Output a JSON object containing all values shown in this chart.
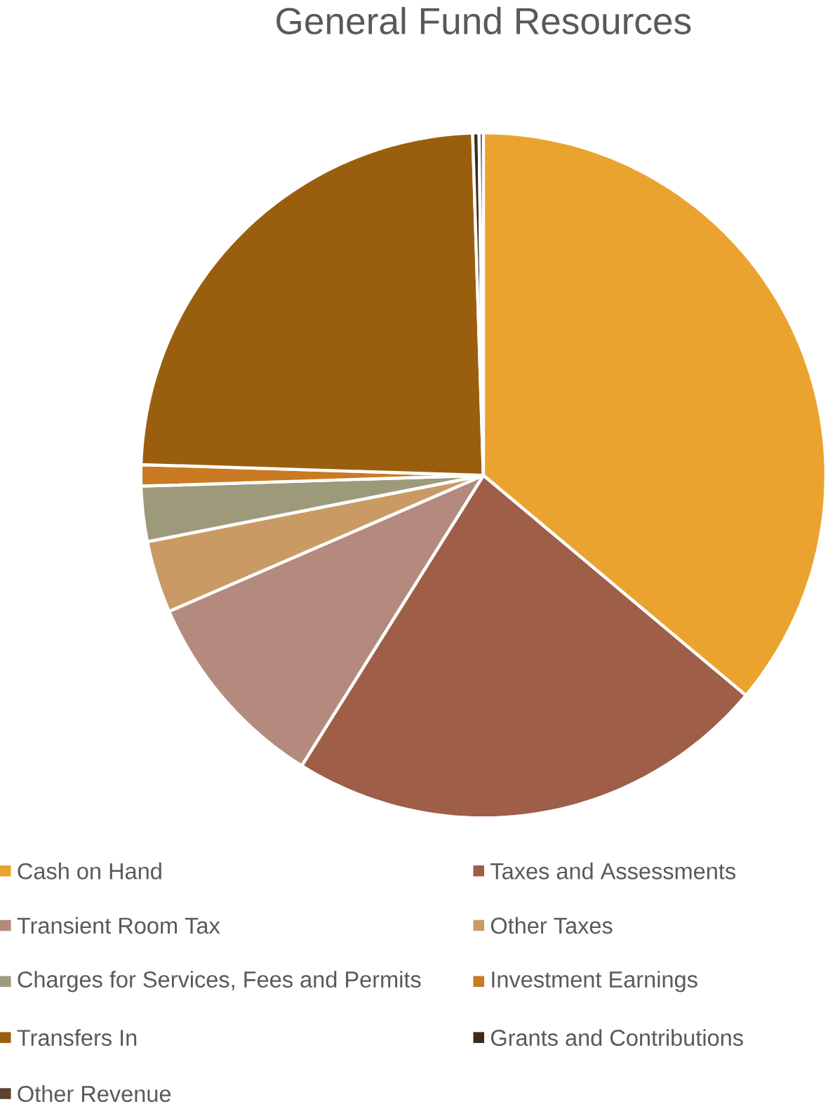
{
  "chart_data": {
    "type": "pie",
    "title": "General Fund Resources",
    "categories": [
      "Cash on Hand",
      "Taxes and Assessments",
      "Transient Room Tax",
      "Other Taxes",
      "Charges for Services, Fees and Permits",
      "Investment Earnings",
      "Transfers In",
      "Grants and Contributions",
      "Other Revenue"
    ],
    "values": [
      36.1,
      22.8,
      9.6,
      3.4,
      2.6,
      1.0,
      24.0,
      0.3,
      0.2
    ],
    "colors": [
      "#eba32f",
      "#9e5e48",
      "#b48a7e",
      "#c99a63",
      "#9d9a7b",
      "#c97a22",
      "#9a5f0e",
      "#3d2a1a",
      "#5e4030"
    ],
    "legend": "bottom"
  }
}
